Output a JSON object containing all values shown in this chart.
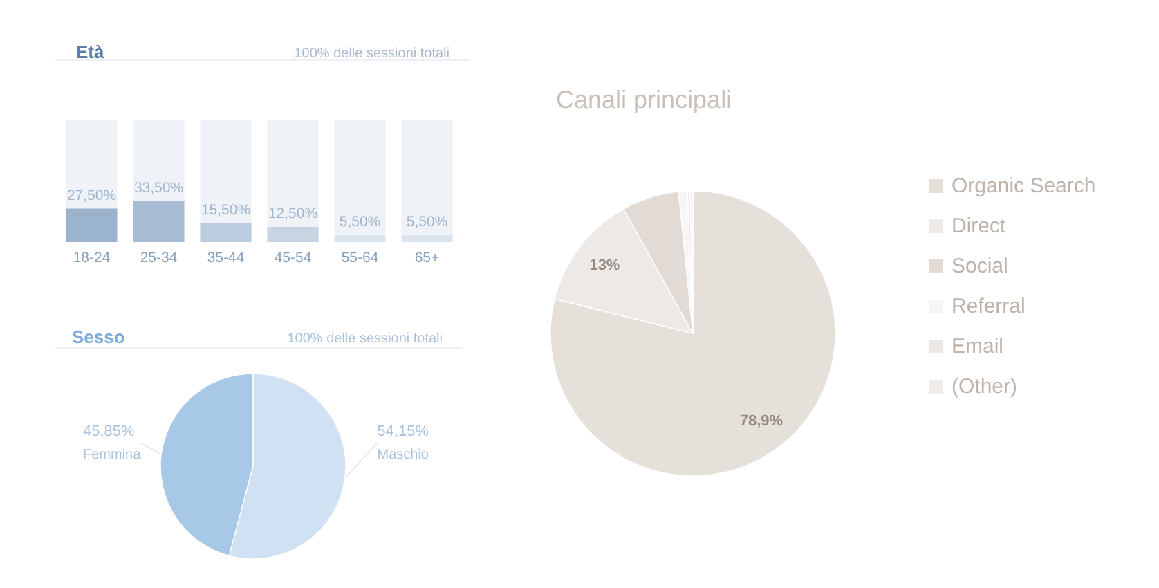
{
  "chart_data": [
    {
      "type": "bar",
      "title": "Età",
      "subtitle": "100% delle sessioni totali",
      "categories": [
        "18-24",
        "25-34",
        "35-44",
        "45-54",
        "55-64",
        "65+"
      ],
      "values": [
        27.5,
        33.5,
        15.5,
        12.5,
        5.5,
        5.5
      ],
      "colors": [
        "#9bb3cc",
        "#a8bdd4",
        "#bccbdd",
        "#c8d4e2",
        "#dbe3ed",
        "#dbe3ed"
      ],
      "value_labels": [
        "27,50%",
        "33,50%",
        "15,50%",
        "12,50%",
        "5,50%",
        "5,50%"
      ],
      "ylim": [
        0,
        100
      ],
      "tick_labels": "x"
    },
    {
      "type": "pie",
      "title": "Sesso",
      "subtitle": "100% delle sessioni totali",
      "categories": [
        "Femmina",
        "Maschio"
      ],
      "values": [
        45.85,
        54.15
      ],
      "colors": [
        "#a8c8e8",
        "#cfe1f2"
      ],
      "value_labels": [
        "45,85%",
        "54,15%"
      ]
    },
    {
      "type": "pie",
      "title": "Canali principali",
      "categories": [
        "Organic Search",
        "Direct",
        "Social",
        "Referral",
        "Email",
        "(Other)"
      ],
      "values": [
        78.9,
        13,
        6.5,
        1.0,
        0.3,
        0.3
      ],
      "colors": [
        "#e6e0db",
        "#ede9e6",
        "#e2dbd5",
        "#f8f6f4",
        "#ece7e3",
        "#f0ece9"
      ],
      "value_labels": [
        "78,9%",
        "13%",
        null,
        null,
        null,
        null
      ],
      "legend": "right"
    }
  ]
}
